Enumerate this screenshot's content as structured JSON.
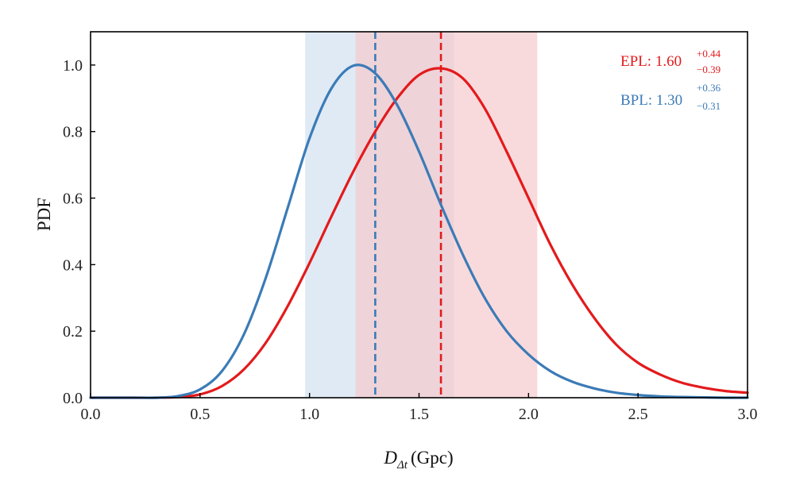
{
  "chart_data": {
    "type": "line",
    "xlabel_main": "D",
    "xlabel_sub": "Δt",
    "xlabel_unit": "(Gpc)",
    "ylabel": "PDF",
    "xlim": [
      0,
      3
    ],
    "ylim": [
      0,
      1.1
    ],
    "x_ticks": [
      0.0,
      0.5,
      1.0,
      1.5,
      2.0,
      2.5,
      3.0
    ],
    "x_tick_labels": [
      "0.0",
      "0.5",
      "1.0",
      "1.5",
      "2.0",
      "2.5",
      "3.0"
    ],
    "y_ticks": [
      0.0,
      0.2,
      0.4,
      0.6,
      0.8,
      1.0
    ],
    "y_tick_labels": [
      "0.0",
      "0.2",
      "0.4",
      "0.6",
      "0.8",
      "1.0"
    ],
    "series": [
      {
        "name": "EPL",
        "color": "#e31a1c",
        "band_color": "#f6c6ca",
        "median": 1.6,
        "band": [
          1.21,
          2.04
        ],
        "median_label": "1.60",
        "upper_err": "+0.44",
        "lower_err": "−0.39",
        "x": [
          0.0,
          0.1,
          0.2,
          0.3,
          0.4,
          0.5,
          0.6,
          0.7,
          0.8,
          0.9,
          1.0,
          1.1,
          1.2,
          1.3,
          1.4,
          1.5,
          1.6,
          1.7,
          1.8,
          1.9,
          2.0,
          2.1,
          2.2,
          2.3,
          2.4,
          2.5,
          2.6,
          2.7,
          2.8,
          2.9,
          3.0
        ],
        "values": [
          0.0,
          0.0,
          0.0,
          0.0,
          0.002,
          0.01,
          0.035,
          0.085,
          0.165,
          0.275,
          0.405,
          0.545,
          0.68,
          0.8,
          0.9,
          0.97,
          0.99,
          0.96,
          0.87,
          0.74,
          0.6,
          0.46,
          0.34,
          0.24,
          0.16,
          0.105,
          0.07,
          0.045,
          0.03,
          0.02,
          0.015
        ]
      },
      {
        "name": "BPL",
        "color": "#3b7bb7",
        "band_color": "#c9dcee",
        "median": 1.3,
        "band": [
          0.98,
          1.66
        ],
        "median_label": "1.30",
        "upper_err": "+0.36",
        "lower_err": "−0.31",
        "x": [
          0.0,
          0.1,
          0.2,
          0.3,
          0.4,
          0.5,
          0.6,
          0.7,
          0.8,
          0.9,
          1.0,
          1.1,
          1.2,
          1.3,
          1.4,
          1.5,
          1.6,
          1.7,
          1.8,
          1.9,
          2.0,
          2.1,
          2.2,
          2.3,
          2.4,
          2.5,
          2.6,
          2.7,
          2.8,
          2.9,
          3.0
        ],
        "values": [
          0.0,
          0.0,
          0.0,
          0.0,
          0.005,
          0.025,
          0.08,
          0.19,
          0.36,
          0.57,
          0.78,
          0.93,
          0.998,
          0.975,
          0.88,
          0.74,
          0.58,
          0.43,
          0.3,
          0.2,
          0.13,
          0.08,
          0.048,
          0.028,
          0.015,
          0.008,
          0.004,
          0.002,
          0.001,
          0.0,
          0.0
        ]
      }
    ]
  }
}
